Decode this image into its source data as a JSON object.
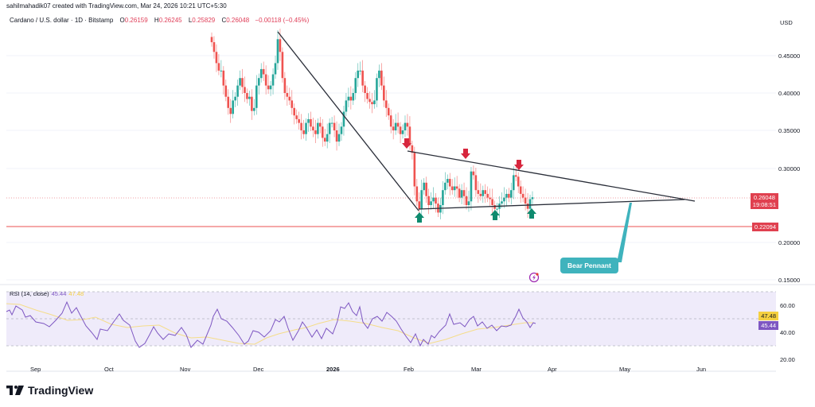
{
  "header": {
    "credit": "sahilmahadik07 created with TradingView.com, Mar 24, 2026 10:21 UTC+5:30",
    "symbol": "Cardano / U.S. dollar · 1D · Bitstamp",
    "o_label": "O",
    "o_value": "0.26159",
    "h_label": "H",
    "h_value": "0.26245",
    "l_label": "L",
    "l_value": "0.25829",
    "c_label": "C",
    "c_value": "0.26048",
    "change": "−0.00118 (−0.45%)"
  },
  "price_axis": {
    "currency": "USD",
    "ticks": [
      "0.45000",
      "0.40000",
      "0.35000",
      "0.30000",
      "0.20000",
      "0.15000"
    ],
    "current_price": "0.26048",
    "countdown": "19:08:51",
    "support_price": "0.22094"
  },
  "rsi": {
    "title": "RSI (14, close)",
    "value": "45.44",
    "ma_value": "47.48",
    "ticks": [
      "60.00",
      "40.00",
      "20.00"
    ],
    "rsi_tag": "45.44",
    "ma_tag": "47.48"
  },
  "time_axis": {
    "labels": [
      "Sep",
      "Oct",
      "Nov",
      "Dec",
      "2026",
      "Feb",
      "Mar",
      "Apr",
      "May",
      "Jun"
    ]
  },
  "annotation": {
    "pattern_label": "Bear Pennant"
  },
  "branding": {
    "logo_text": "TradingView"
  },
  "colors": {
    "up": "#26a69a",
    "down": "#ef5350",
    "rsi_line": "#7e57c2",
    "rsi_ma": "#f5d76e",
    "support": "#f28b8b",
    "label_bg": "#3fb3bd",
    "price_tag": "#e0404f"
  },
  "chart_data": {
    "type": "candlestick",
    "title": "Cardano / U.S. dollar · 1D · Bitstamp",
    "ylabel": "USD",
    "ylim": [
      0.15,
      0.48
    ],
    "x_labels": [
      "Sep",
      "Oct",
      "Nov",
      "Dec",
      "2026",
      "Feb",
      "Mar",
      "Apr",
      "May",
      "Jun"
    ],
    "last": {
      "open": 0.26159,
      "high": 0.26245,
      "low": 0.25829,
      "close": 0.26048,
      "change": -0.00118,
      "change_pct": -0.45
    },
    "horizontal_levels": [
      {
        "name": "support",
        "value": 0.22094
      },
      {
        "name": "current",
        "value": 0.26048
      }
    ],
    "approx_closes": [
      {
        "date": "Nov mid",
        "value": 0.47
      },
      {
        "date": "Nov late",
        "value": 0.39
      },
      {
        "date": "Dec early",
        "value": 0.46
      },
      {
        "date": "Dec late",
        "value": 0.34
      },
      {
        "date": "Jan mid",
        "value": 0.42
      },
      {
        "date": "Jan late",
        "value": 0.36
      },
      {
        "date": "Feb early",
        "value": 0.25
      },
      {
        "date": "Mar early",
        "value": 0.245
      },
      {
        "date": "Mar mid",
        "value": 0.29
      },
      {
        "date": "Mar 24",
        "value": 0.26048
      }
    ],
    "trendlines": [
      {
        "name": "pole",
        "from": {
          "x": "Dec 10",
          "y": 0.48
        },
        "to": {
          "x": "Feb 6",
          "y": 0.237
        }
      },
      {
        "name": "pennant_upper",
        "from": {
          "x": "Feb 1",
          "y": 0.32
        },
        "to": {
          "x": "Jun",
          "y": 0.25
        }
      },
      {
        "name": "pennant_lower",
        "from": {
          "x": "Feb 6",
          "y": 0.237
        },
        "to": {
          "x": "Jun",
          "y": 0.251
        }
      }
    ],
    "markers": {
      "down_arrows": [
        "Feb 1",
        "Feb 25",
        "Mar 18"
      ],
      "up_arrows": [
        "Feb 6",
        "Mar 10",
        "Mar 23"
      ]
    },
    "indicator": {
      "name": "RSI (14, close)",
      "value": 45.44,
      "ma": 47.48,
      "levels": [
        60,
        40,
        20
      ],
      "band": [
        30,
        70
      ]
    }
  }
}
